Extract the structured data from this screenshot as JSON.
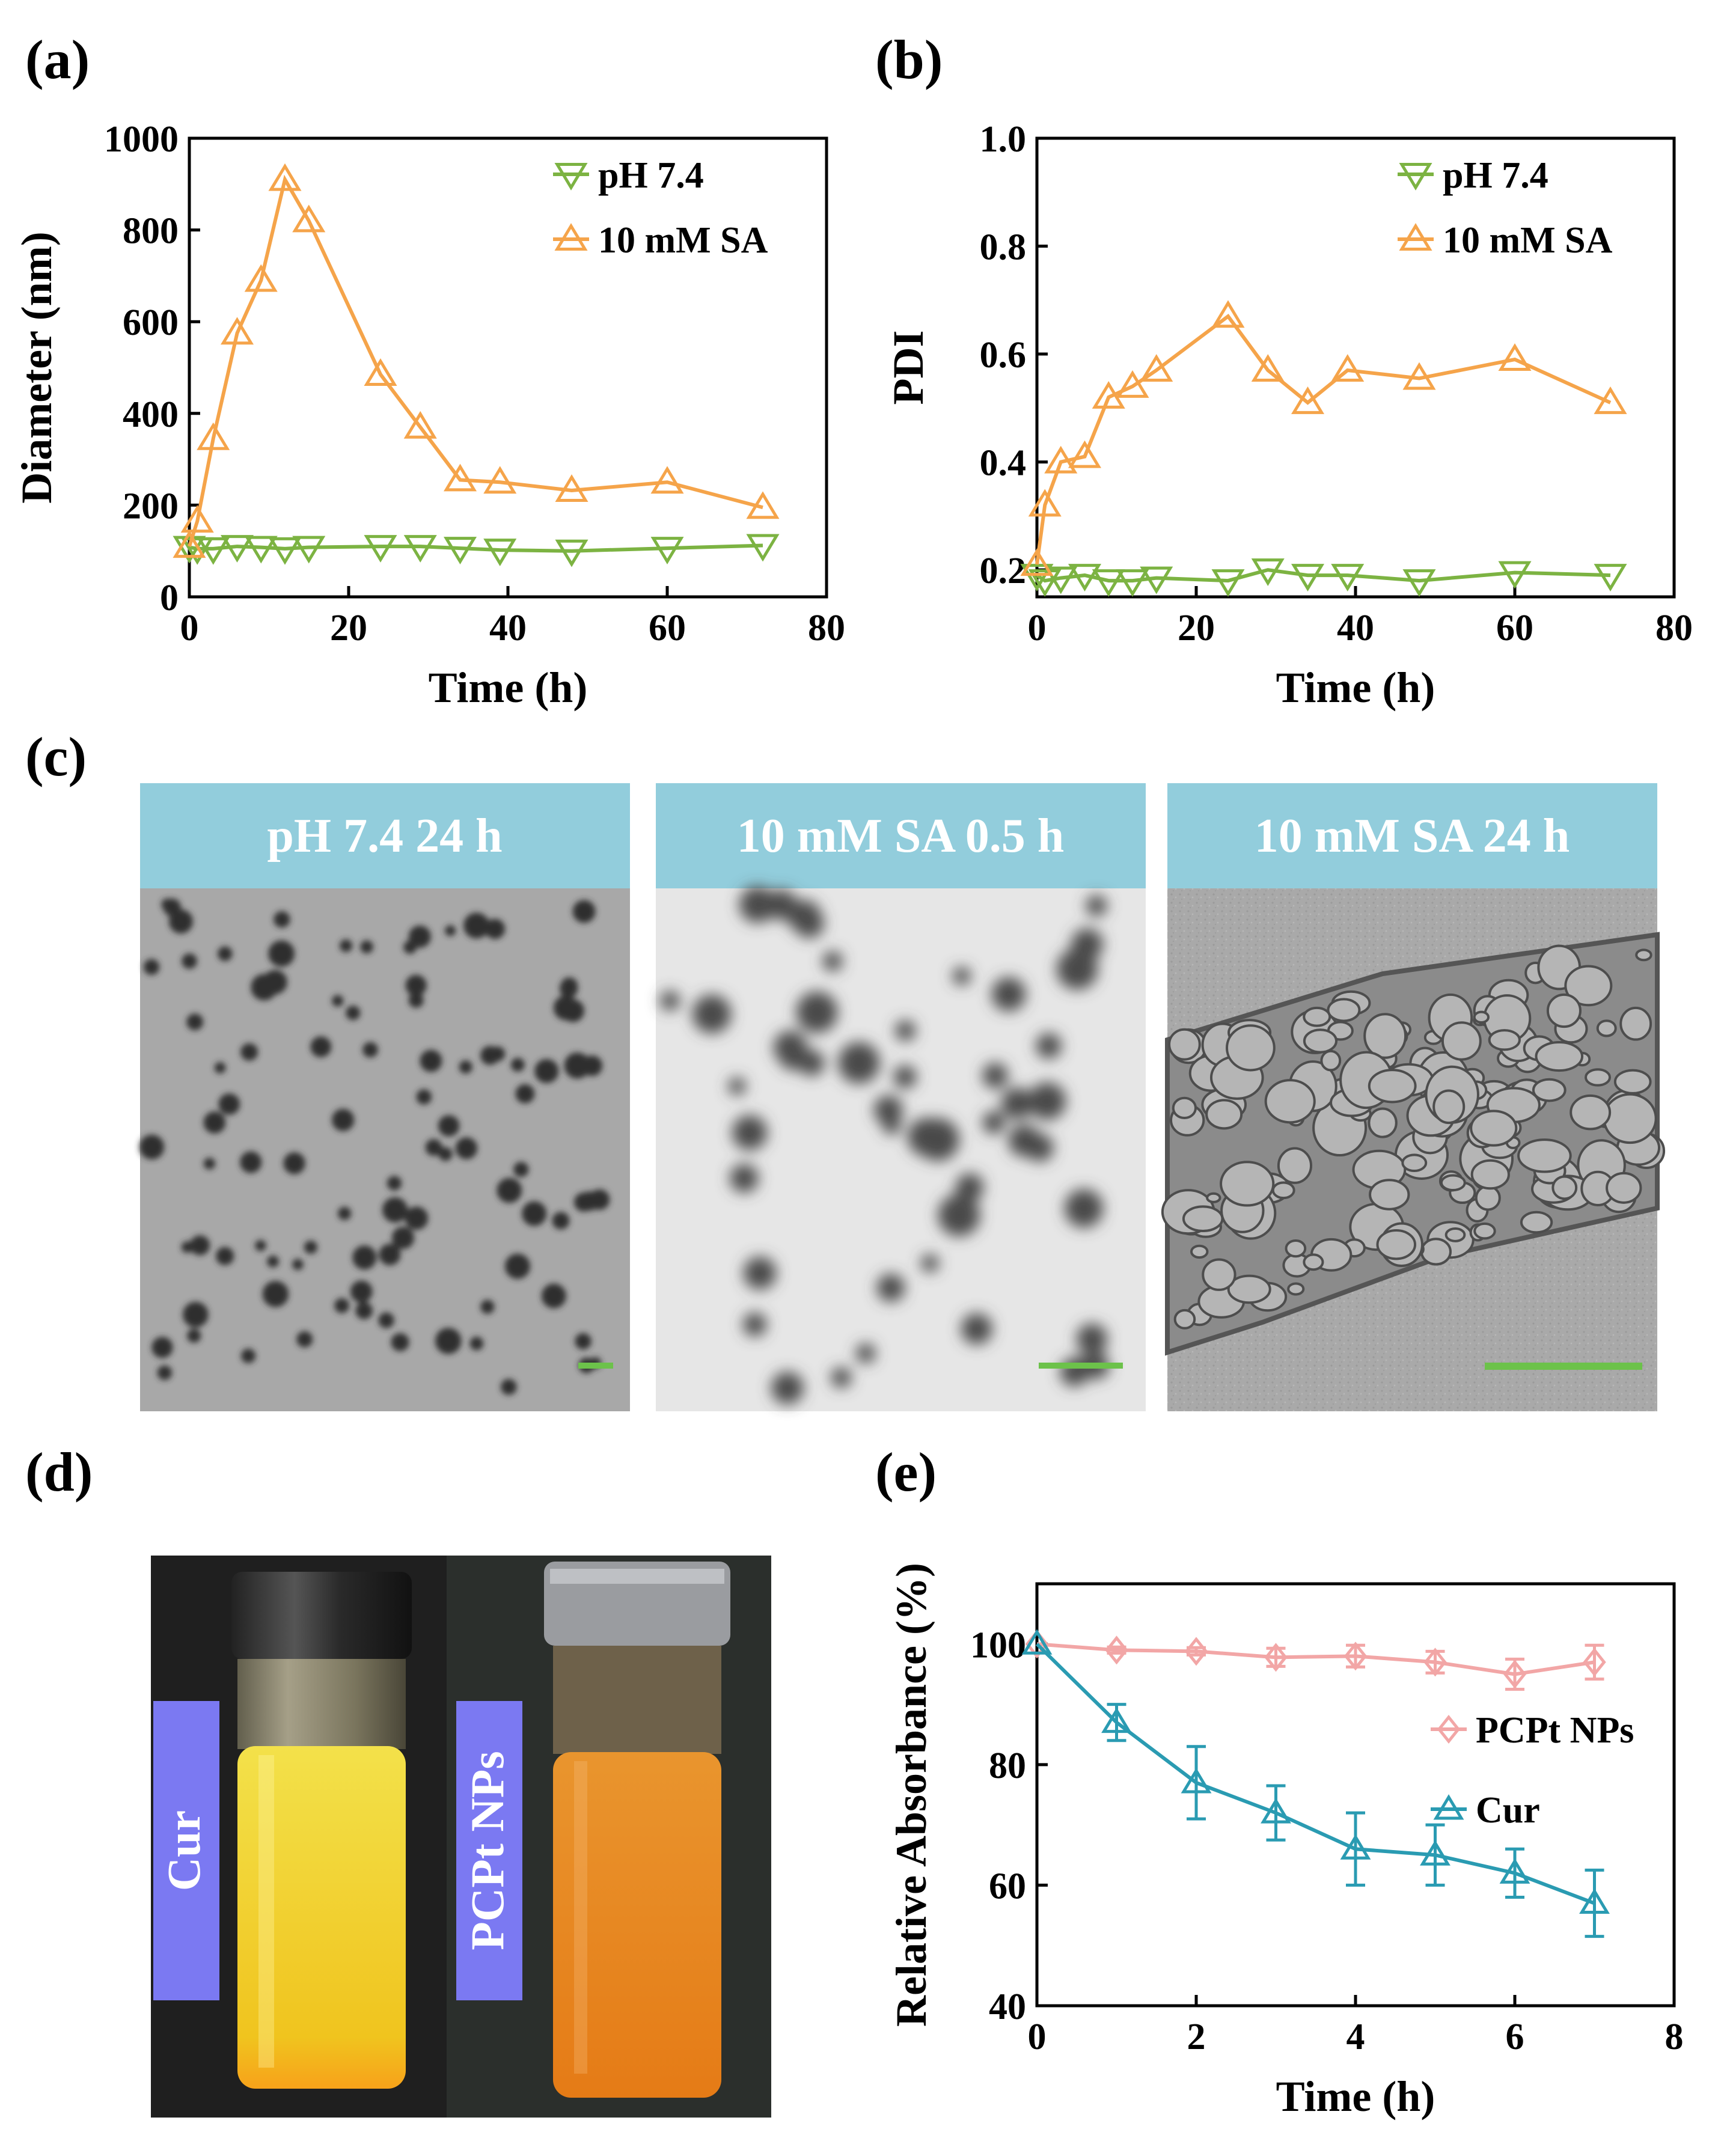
{
  "panels": {
    "a": "(a)",
    "b": "(b)",
    "c": "(c)",
    "d": "(d)",
    "e": "(e)"
  },
  "colors": {
    "orange": "#F5A44A",
    "green": "#7CB342",
    "pink": "#F2A6A6",
    "teal": "#2A9BB2",
    "tem_header": "#92CDDC",
    "scale_bar": "#6CC24A",
    "vial_label_bg": "#7B79F2"
  },
  "tem": {
    "images": [
      {
        "title": "pH 7.4 24 h"
      },
      {
        "title": "10 mM SA 0.5 h"
      },
      {
        "title": "10 mM SA 24 h"
      }
    ]
  },
  "vials": {
    "labels": [
      "Cur",
      "PCPt NPs"
    ]
  },
  "chart_data": [
    {
      "type": "line",
      "id": "a",
      "title": "",
      "xlabel": "Time (h)",
      "ylabel": "Diameter (nm)",
      "xlim": [
        0,
        80
      ],
      "ylim": [
        0,
        1000
      ],
      "xticks": [
        0,
        20,
        40,
        60,
        80
      ],
      "yticks": [
        0,
        200,
        400,
        600,
        800,
        1000
      ],
      "legend_position": "top-right",
      "series": [
        {
          "name": "pH 7.4",
          "marker": "triangle-down",
          "color": "green",
          "x": [
            0,
            1,
            3,
            6,
            9,
            12,
            15,
            24,
            29,
            34,
            39,
            48,
            60,
            72
          ],
          "y": [
            108,
            105,
            105,
            110,
            108,
            105,
            108,
            110,
            110,
            106,
            102,
            100,
            106,
            112
          ]
        },
        {
          "name": "10 mM SA",
          "marker": "triangle-up",
          "color": "orange",
          "x": [
            0,
            1,
            3,
            6,
            9,
            12,
            15,
            24,
            29,
            34,
            39,
            48,
            60,
            72
          ],
          "y": [
            110,
            165,
            345,
            575,
            690,
            910,
            820,
            485,
            370,
            255,
            250,
            232,
            250,
            195
          ]
        }
      ]
    },
    {
      "type": "line",
      "id": "b",
      "title": "",
      "xlabel": "Time (h)",
      "ylabel": "PDI",
      "xlim": [
        0,
        80
      ],
      "ylim": [
        0.15,
        1.0
      ],
      "xticks": [
        0,
        20,
        40,
        60,
        80
      ],
      "yticks": [
        0.2,
        0.4,
        0.6,
        0.8,
        1.0
      ],
      "ytick_labels": [
        "0.2",
        "0.4",
        "0.6",
        "0.8",
        "1.0"
      ],
      "legend_position": "top-right",
      "series": [
        {
          "name": "pH 7.4",
          "marker": "triangle-down",
          "color": "green",
          "x": [
            0,
            1,
            3,
            6,
            9,
            12,
            15,
            24,
            29,
            34,
            39,
            48,
            60,
            72
          ],
          "y": [
            0.19,
            0.18,
            0.185,
            0.19,
            0.18,
            0.18,
            0.185,
            0.18,
            0.2,
            0.19,
            0.19,
            0.18,
            0.195,
            0.19
          ]
        },
        {
          "name": "10 mM SA",
          "marker": "triangle-up",
          "color": "orange",
          "x": [
            0,
            1,
            3,
            6,
            9,
            12,
            15,
            24,
            29,
            34,
            39,
            48,
            60,
            72
          ],
          "y": [
            0.21,
            0.32,
            0.4,
            0.41,
            0.52,
            0.54,
            0.57,
            0.67,
            0.57,
            0.51,
            0.57,
            0.555,
            0.59,
            0.51
          ]
        }
      ]
    },
    {
      "type": "line",
      "id": "e",
      "title": "",
      "xlabel": "Time (h)",
      "ylabel": "Relative Absorbance (%)",
      "xlim": [
        0,
        8
      ],
      "ylim": [
        40,
        110
      ],
      "xticks": [
        0,
        2,
        4,
        6,
        8
      ],
      "yticks": [
        40,
        60,
        80,
        100
      ],
      "legend_position": "center-right",
      "series": [
        {
          "name": "PCPt NPs",
          "marker": "diamond",
          "color": "pink",
          "x": [
            0,
            1,
            2,
            3,
            4,
            5,
            6,
            7
          ],
          "y": [
            100,
            99,
            98.8,
            97.8,
            98,
            97,
            95,
            97
          ],
          "err": [
            0,
            0.5,
            0.6,
            1.5,
            1.8,
            1.8,
            2.5,
            2.8
          ]
        },
        {
          "name": "Cur",
          "marker": "triangle-up",
          "color": "teal",
          "x": [
            0,
            1,
            2,
            3,
            4,
            5,
            6,
            7
          ],
          "y": [
            100,
            87,
            77,
            72,
            66,
            65,
            62,
            57
          ],
          "err": [
            0,
            3,
            6,
            4.5,
            6,
            5,
            4,
            5.5
          ]
        }
      ]
    }
  ]
}
